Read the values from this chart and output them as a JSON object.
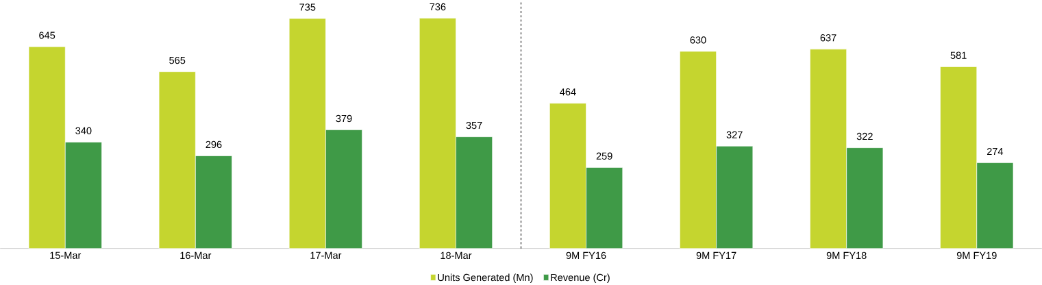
{
  "chart_data": {
    "type": "bar",
    "categories": [
      "15-Mar",
      "16-Mar",
      "17-Mar",
      "18-Mar",
      "9M FY16",
      "9M FY17",
      "9M FY18",
      "9M FY19"
    ],
    "series": [
      {
        "name": "Units Generated (Mn)",
        "color": "#c5d52f",
        "values": [
          645,
          565,
          735,
          736,
          464,
          630,
          637,
          581
        ]
      },
      {
        "name": "Revenue (Cr)",
        "color": "#3f9a47",
        "values": [
          340,
          296,
          379,
          357,
          259,
          327,
          322,
          274
        ]
      }
    ],
    "ylim": [
      0,
      790
    ],
    "data_labels": true,
    "legend": "bottom"
  }
}
